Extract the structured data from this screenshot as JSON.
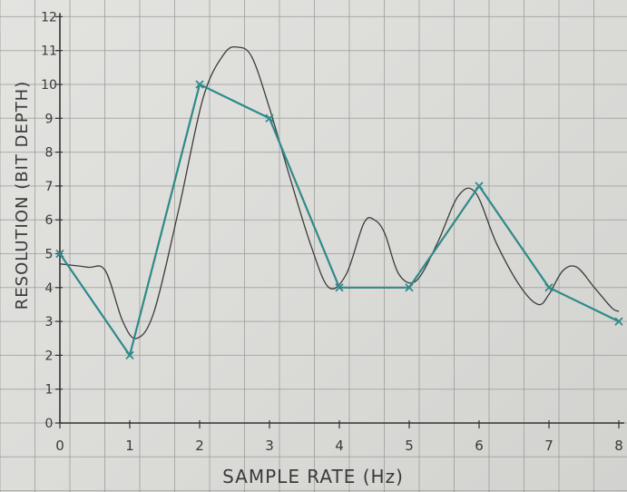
{
  "chart_data": {
    "type": "line",
    "title": "",
    "xlabel": "SAMPLE RATE (Hz)",
    "ylabel": "RESOLUTION (BIT DEPTH)",
    "xlim": [
      0,
      8
    ],
    "ylim": [
      0,
      12
    ],
    "x_ticks": [
      "0",
      "1",
      "2",
      "3",
      "4",
      "5",
      "6",
      "7",
      "8"
    ],
    "y_ticks": [
      "0",
      "1",
      "2",
      "3",
      "4",
      "5",
      "6",
      "7",
      "8",
      "9",
      "10",
      "11",
      "12"
    ],
    "grid": true,
    "series": [
      {
        "type": "sampled",
        "marker": "x",
        "x": [
          0,
          1,
          2,
          3,
          4,
          5,
          6,
          7,
          8
        ],
        "y": [
          5,
          2,
          10,
          9,
          4,
          4,
          7,
          4,
          3
        ]
      },
      {
        "type": "analog-curve",
        "x": [
          0,
          0.4,
          0.65,
          0.9,
          1.1,
          1.35,
          1.7,
          2.05,
          2.35,
          2.55,
          2.75,
          3.0,
          3.3,
          3.6,
          3.85,
          4.1,
          4.35,
          4.5,
          4.65,
          4.85,
          5.1,
          5.4,
          5.7,
          5.95,
          6.25,
          6.6,
          6.85,
          7.0,
          7.2,
          7.4,
          7.65,
          7.9,
          8.0
        ],
        "y": [
          4.7,
          4.6,
          4.5,
          3.0,
          2.5,
          3.3,
          6.3,
          9.6,
          10.9,
          11.1,
          10.8,
          9.3,
          7.2,
          5.2,
          4.0,
          4.4,
          5.9,
          6.0,
          5.6,
          4.4,
          4.2,
          5.3,
          6.7,
          6.8,
          5.3,
          4.0,
          3.5,
          3.8,
          4.5,
          4.6,
          4.0,
          3.4,
          3.3
        ]
      }
    ],
    "colors": {
      "sampled": "#2e8a88",
      "analog": "#3c3c3c",
      "grid": "#9a9a98",
      "axis": "#333333"
    }
  }
}
